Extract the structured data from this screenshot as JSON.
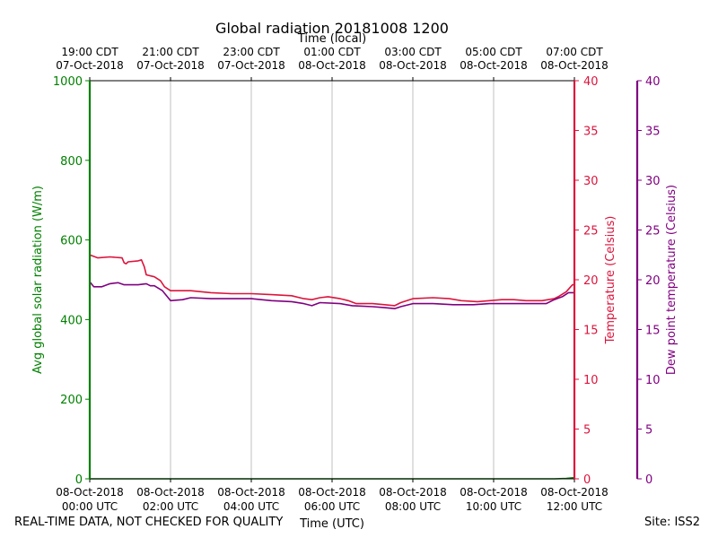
{
  "chart_data": {
    "type": "line",
    "title": "Global radiation 20181008 1200",
    "x_bottom_label": "Time (UTC)",
    "x_top_label": "Time (local)",
    "x_range_hours_utc": [
      0,
      12
    ],
    "x_bottom_ticks": [
      {
        "hour": 0,
        "line1": "08-Oct-2018",
        "line2": "00:00 UTC"
      },
      {
        "hour": 2,
        "line1": "08-Oct-2018",
        "line2": "02:00 UTC"
      },
      {
        "hour": 4,
        "line1": "08-Oct-2018",
        "line2": "04:00 UTC"
      },
      {
        "hour": 6,
        "line1": "08-Oct-2018",
        "line2": "06:00 UTC"
      },
      {
        "hour": 8,
        "line1": "08-Oct-2018",
        "line2": "08:00 UTC"
      },
      {
        "hour": 10,
        "line1": "08-Oct-2018",
        "line2": "10:00 UTC"
      },
      {
        "hour": 12,
        "line1": "08-Oct-2018",
        "line2": "12:00 UTC"
      }
    ],
    "x_top_ticks": [
      {
        "hour": 0,
        "line1": "19:00 CDT",
        "line2": "07-Oct-2018"
      },
      {
        "hour": 2,
        "line1": "21:00 CDT",
        "line2": "07-Oct-2018"
      },
      {
        "hour": 4,
        "line1": "23:00 CDT",
        "line2": "07-Oct-2018"
      },
      {
        "hour": 6,
        "line1": "01:00 CDT",
        "line2": "08-Oct-2018"
      },
      {
        "hour": 8,
        "line1": "03:00 CDT",
        "line2": "08-Oct-2018"
      },
      {
        "hour": 10,
        "line1": "05:00 CDT",
        "line2": "08-Oct-2018"
      },
      {
        "hour": 12,
        "line1": "07:00 CDT",
        "line2": "08-Oct-2018"
      }
    ],
    "y_left": {
      "label": "Avg global solar radiation (W/m)",
      "range": [
        0,
        1000
      ],
      "ticks": [
        0,
        200,
        400,
        600,
        800,
        1000
      ],
      "color": "#008000"
    },
    "y_right1": {
      "label": "Temperature (Celsius)",
      "range": [
        0,
        40
      ],
      "ticks": [
        0,
        5,
        10,
        15,
        20,
        25,
        30,
        35,
        40
      ],
      "color": "#dc143c"
    },
    "y_right2": {
      "label": "Dew point temperature (Celsius)",
      "range": [
        0,
        40
      ],
      "ticks": [
        0,
        5,
        10,
        15,
        20,
        25,
        30,
        35,
        40
      ],
      "color": "#800080"
    },
    "grid": "vertical",
    "series": [
      {
        "axis": "y_left",
        "color": "#008000",
        "points": [
          [
            0,
            0
          ],
          [
            11.5,
            0
          ],
          [
            11.8,
            1
          ],
          [
            12,
            3
          ]
        ]
      },
      {
        "axis": "y_right1",
        "color": "#dc143c",
        "points": [
          [
            0,
            22.5
          ],
          [
            0.2,
            22.2
          ],
          [
            0.5,
            22.3
          ],
          [
            0.8,
            22.2
          ],
          [
            0.85,
            21.7
          ],
          [
            0.9,
            21.6
          ],
          [
            0.95,
            21.8
          ],
          [
            1.2,
            21.9
          ],
          [
            1.28,
            22.0
          ],
          [
            1.35,
            21.3
          ],
          [
            1.4,
            20.5
          ],
          [
            1.6,
            20.3
          ],
          [
            1.75,
            19.9
          ],
          [
            1.85,
            19.3
          ],
          [
            2.0,
            18.9
          ],
          [
            2.2,
            18.9
          ],
          [
            2.5,
            18.9
          ],
          [
            3.0,
            18.7
          ],
          [
            3.5,
            18.6
          ],
          [
            4.0,
            18.6
          ],
          [
            4.5,
            18.5
          ],
          [
            5.0,
            18.4
          ],
          [
            5.3,
            18.1
          ],
          [
            5.5,
            18.0
          ],
          [
            5.7,
            18.2
          ],
          [
            5.9,
            18.3
          ],
          [
            6.2,
            18.1
          ],
          [
            6.4,
            17.9
          ],
          [
            6.6,
            17.6
          ],
          [
            7.0,
            17.6
          ],
          [
            7.3,
            17.5
          ],
          [
            7.55,
            17.4
          ],
          [
            7.7,
            17.7
          ],
          [
            8.0,
            18.1
          ],
          [
            8.5,
            18.2
          ],
          [
            8.9,
            18.1
          ],
          [
            9.2,
            17.9
          ],
          [
            9.6,
            17.8
          ],
          [
            9.9,
            17.9
          ],
          [
            10.2,
            18.0
          ],
          [
            10.5,
            18.0
          ],
          [
            10.8,
            17.9
          ],
          [
            11.2,
            17.9
          ],
          [
            11.5,
            18.1
          ],
          [
            11.6,
            18.3
          ],
          [
            11.8,
            18.8
          ],
          [
            11.95,
            19.5
          ],
          [
            12.0,
            19.5
          ]
        ]
      },
      {
        "axis": "y_right2",
        "color": "#800080",
        "points": [
          [
            0,
            19.8
          ],
          [
            0.1,
            19.3
          ],
          [
            0.3,
            19.3
          ],
          [
            0.5,
            19.6
          ],
          [
            0.7,
            19.7
          ],
          [
            0.85,
            19.5
          ],
          [
            1.2,
            19.5
          ],
          [
            1.4,
            19.6
          ],
          [
            1.5,
            19.4
          ],
          [
            1.6,
            19.4
          ],
          [
            1.8,
            18.9
          ],
          [
            1.9,
            18.4
          ],
          [
            2.0,
            17.9
          ],
          [
            2.3,
            18.0
          ],
          [
            2.5,
            18.2
          ],
          [
            3.0,
            18.1
          ],
          [
            3.5,
            18.1
          ],
          [
            4.0,
            18.1
          ],
          [
            4.5,
            17.9
          ],
          [
            5.0,
            17.8
          ],
          [
            5.3,
            17.6
          ],
          [
            5.5,
            17.4
          ],
          [
            5.7,
            17.7
          ],
          [
            6.2,
            17.6
          ],
          [
            6.5,
            17.4
          ],
          [
            7.0,
            17.3
          ],
          [
            7.3,
            17.2
          ],
          [
            7.55,
            17.1
          ],
          [
            7.7,
            17.3
          ],
          [
            8.0,
            17.6
          ],
          [
            8.5,
            17.6
          ],
          [
            9.0,
            17.5
          ],
          [
            9.5,
            17.5
          ],
          [
            9.9,
            17.6
          ],
          [
            10.2,
            17.6
          ],
          [
            10.6,
            17.6
          ],
          [
            11.0,
            17.6
          ],
          [
            11.3,
            17.6
          ],
          [
            11.5,
            18.0
          ],
          [
            11.7,
            18.3
          ],
          [
            11.85,
            18.7
          ],
          [
            12.0,
            18.7
          ]
        ]
      }
    ]
  },
  "footer": {
    "left_note": "REAL-TIME DATA, NOT CHECKED FOR QUALITY",
    "site": "Site: ISS2"
  }
}
